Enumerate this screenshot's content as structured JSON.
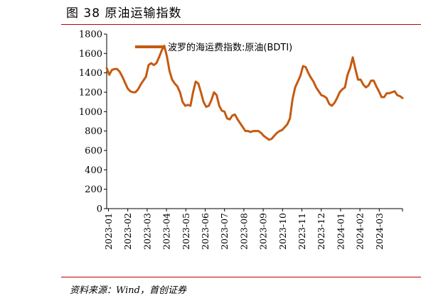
{
  "figure": {
    "title": "图 38  原油运输指数",
    "source": "资料来源：Wind，首创证券"
  },
  "chart_data": {
    "type": "line",
    "series": [
      {
        "name": "波罗的海运费指数:原油(BDTI)",
        "color": "#c55a11",
        "values": [
          1450,
          1380,
          1430,
          1440,
          1440,
          1410,
          1360,
          1300,
          1240,
          1210,
          1200,
          1200,
          1230,
          1280,
          1320,
          1360,
          1480,
          1500,
          1480,
          1500,
          1560,
          1630,
          1680,
          1570,
          1420,
          1330,
          1290,
          1260,
          1200,
          1100,
          1060,
          1070,
          1060,
          1200,
          1310,
          1290,
          1200,
          1100,
          1050,
          1060,
          1120,
          1200,
          1170,
          1060,
          1010,
          1000,
          930,
          920,
          960,
          970,
          920,
          880,
          840,
          800,
          800,
          790,
          800,
          800,
          800,
          780,
          750,
          730,
          710,
          720,
          750,
          780,
          800,
          810,
          840,
          870,
          930,
          1130,
          1250,
          1310,
          1370,
          1470,
          1460,
          1400,
          1350,
          1310,
          1250,
          1210,
          1170,
          1160,
          1140,
          1080,
          1060,
          1090,
          1140,
          1200,
          1230,
          1250,
          1380,
          1450,
          1560,
          1440,
          1330,
          1330,
          1280,
          1250,
          1270,
          1320,
          1320,
          1260,
          1210,
          1150,
          1150,
          1190,
          1190,
          1200,
          1210,
          1170,
          1160,
          1140
        ]
      }
    ],
    "x_tick_labels": [
      "2023-01",
      "2023-02",
      "2023-03",
      "2023-04",
      "2023-05",
      "2023-06",
      "2023-07",
      "2023-08",
      "2023-09",
      "2023-10",
      "2023-11",
      "2023-12",
      "2024-01",
      "2024-02",
      "2024-03"
    ],
    "y_ticks": [
      0,
      200,
      400,
      600,
      800,
      1000,
      1200,
      1400,
      1600,
      1800
    ],
    "ylim": [
      0,
      1800
    ],
    "grid": false,
    "legend_position": "top-center"
  }
}
